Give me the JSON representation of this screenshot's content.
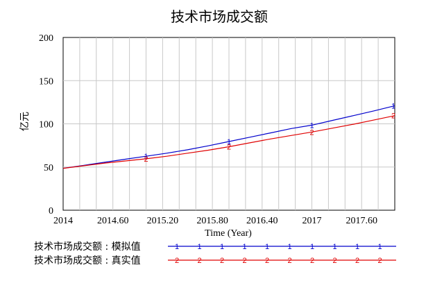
{
  "chart_data": {
    "type": "line",
    "title": "技术市场成交额",
    "xlabel": "Time (Year)",
    "ylabel": "亿元",
    "xlim": [
      2014,
      2018
    ],
    "ylim": [
      0,
      200
    ],
    "x_ticks": [
      2014,
      2014.6,
      2015.2,
      2015.8,
      2016.4,
      2017,
      2017.6
    ],
    "x_tick_labels": [
      "2014",
      "2014.60",
      "2015.20",
      "2015.80",
      "2016.40",
      "2017",
      "2017.60"
    ],
    "y_ticks": [
      0,
      50,
      100,
      150,
      200
    ],
    "y_tick_labels": [
      "0",
      "50",
      "100",
      "150",
      "200"
    ],
    "grid": true,
    "series": [
      {
        "name": "技术市场成交额 : 模拟值",
        "marker": "1",
        "color": "#0000cc",
        "x": [
          2014,
          2014.25,
          2014.5,
          2014.75,
          2015,
          2015.25,
          2015.5,
          2015.75,
          2016,
          2016.25,
          2016.5,
          2016.75,
          2017,
          2017.25,
          2017.5,
          2017.75,
          2018
        ],
        "y": [
          48.5,
          52,
          55.5,
          59,
          62.5,
          66,
          70,
          74.5,
          79.5,
          84.5,
          89.5,
          94.5,
          98.5,
          104,
          109.5,
          115,
          121
        ]
      },
      {
        "name": "技术市场成交额 : 真实值",
        "marker": "2",
        "color": "#e00000",
        "x": [
          2014,
          2014.25,
          2014.5,
          2014.75,
          2015,
          2015.25,
          2015.5,
          2015.75,
          2016,
          2016.25,
          2016.5,
          2016.75,
          2017,
          2017.25,
          2017.5,
          2017.75,
          2018
        ],
        "y": [
          48.5,
          51.5,
          54.5,
          57,
          59.5,
          62.5,
          66,
          69.5,
          73.5,
          78,
          82.5,
          86.5,
          90.5,
          95,
          99.5,
          104.5,
          109.5
        ]
      }
    ]
  }
}
